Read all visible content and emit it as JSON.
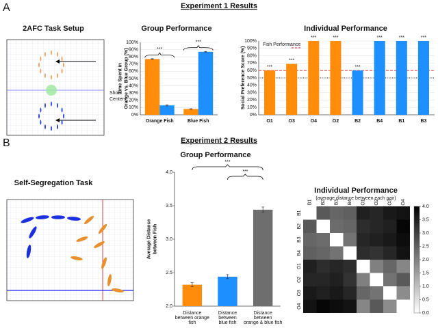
{
  "figure": {
    "panel_labels": [
      "A",
      "B"
    ],
    "section_titles": [
      "Experiment 1 Results",
      "Experiment 2 Results"
    ],
    "setup_a": {
      "title": "2AFC Task Setup",
      "label": [
        "Shoal",
        "Centers"
      ]
    },
    "setup_b": {
      "title": "Self-Segregation Task"
    }
  },
  "chart_data": [
    {
      "type": "bar",
      "title": "Group Performance",
      "ylabel": [
        "Time Spent in",
        "Orange vs. Blue Group (%)"
      ],
      "categories": [
        "Orange Fish",
        "Blue Fish"
      ],
      "series": [
        {
          "color": "#ff8c0a",
          "values": [
            77,
            8
          ],
          "errors": [
            0.5,
            0.4
          ]
        },
        {
          "color": "#1e8fff",
          "values": [
            13,
            87
          ],
          "errors": [
            0.6,
            0.5
          ]
        }
      ],
      "ylim": [
        0,
        100
      ],
      "yticks": [
        {
          "value": 0,
          "label": "0%"
        },
        {
          "value": 10,
          "label": "10%"
        },
        {
          "value": 20,
          "label": "20%"
        },
        {
          "value": 30,
          "label": "30%"
        },
        {
          "value": 40,
          "label": "40%"
        },
        {
          "value": 50,
          "label": "50%"
        },
        {
          "value": 60,
          "label": "60%"
        },
        {
          "value": 70,
          "label": "70%"
        },
        {
          "value": 80,
          "label": "80%"
        },
        {
          "value": 90,
          "label": "90%"
        },
        {
          "value": 100,
          "label": "100%"
        }
      ],
      "annotations": [
        "***",
        "***"
      ]
    },
    {
      "type": "bar",
      "title": "Individual Performance",
      "ylabel": [
        "Social Preference Score (%)"
      ],
      "categories": [
        "O1",
        "O3",
        "O4",
        "O2",
        "B2",
        "B4",
        "B1",
        "B3"
      ],
      "values": [
        60,
        69,
        100,
        100,
        60,
        100,
        100,
        100
      ],
      "colors": [
        "#ff8c0a",
        "#ff8c0a",
        "#ff8c0a",
        "#ff8c0a",
        "#1e8fff",
        "#1e8fff",
        "#1e8fff",
        "#1e8fff"
      ],
      "ylim": [
        0,
        100
      ],
      "yticks": [
        {
          "value": 0,
          "label": "0%"
        },
        {
          "value": 10,
          "label": "10%"
        },
        {
          "value": 20,
          "label": "20%"
        },
        {
          "value": 30,
          "label": "30%"
        },
        {
          "value": 40,
          "label": "40%"
        },
        {
          "value": 50,
          "label": "50%"
        },
        {
          "value": 60,
          "label": "60%"
        },
        {
          "value": 70,
          "label": "70%"
        },
        {
          "value": 80,
          "label": "80%"
        },
        {
          "value": 90,
          "label": "90%"
        },
        {
          "value": 100,
          "label": "100%"
        }
      ],
      "annotations": [
        "***",
        "***",
        "***",
        "***",
        "***",
        "***",
        "***",
        "***"
      ],
      "reference_lines": [
        {
          "value": 60,
          "color": "#d62728",
          "style": "dashed",
          "label": "Fish Performance"
        },
        {
          "value": 50,
          "color": "#222222",
          "style": "dotted"
        }
      ]
    },
    {
      "type": "bar",
      "title": "Group Performance",
      "ylabel": [
        "Average Distance",
        "between Fish"
      ],
      "categories": [
        [
          "Distance",
          "between orange",
          "fish"
        ],
        [
          "Distance",
          "between",
          "blue fish"
        ],
        [
          "Distance",
          "between",
          "orange & blue fish"
        ]
      ],
      "values": [
        2.32,
        2.44,
        3.44
      ],
      "errors": [
        0.03,
        0.03,
        0.04
      ],
      "colors": [
        "#ff8c0a",
        "#1e8fff",
        "#6e6e6e"
      ],
      "ylim": [
        2,
        4
      ],
      "yticks": [
        {
          "value": 2,
          "label": "2.0"
        },
        2.5,
        {
          "value": 3,
          "label": "3.0"
        },
        3.5,
        {
          "value": 4,
          "label": "4.0"
        }
      ],
      "annotations": [
        "***",
        "***"
      ]
    },
    {
      "type": "heatmap",
      "title": "Individual Performance",
      "subtitle": "(average distance between each pair)",
      "columns": [
        "B1",
        "B2",
        "B3",
        "B4",
        "O1",
        "O2",
        "O3",
        "O4"
      ],
      "rows": [
        "B1",
        "B2",
        "B3",
        "B4",
        "O1",
        "O2",
        "O3",
        "O4"
      ],
      "values": [
        [
          0,
          2.6,
          2.4,
          2.5,
          3.5,
          3.4,
          3.6,
          3.7
        ],
        [
          2.6,
          0,
          2.3,
          2.4,
          3.3,
          3.4,
          3.5,
          3.9
        ],
        [
          2.4,
          2.3,
          0,
          2.2,
          3.4,
          3.5,
          3.6,
          3.8
        ],
        [
          2.5,
          2.4,
          2.2,
          0,
          3.3,
          3.2,
          3.4,
          3.7
        ],
        [
          3.5,
          3.3,
          3.4,
          3.3,
          0,
          2.0,
          2.4,
          1.9
        ],
        [
          3.4,
          3.4,
          3.5,
          3.2,
          2.0,
          0,
          2.2,
          2.6
        ],
        [
          3.6,
          3.5,
          3.6,
          3.4,
          2.4,
          2.2,
          0,
          1.8
        ],
        [
          3.7,
          3.9,
          3.8,
          3.7,
          1.9,
          2.6,
          1.8,
          0
        ]
      ],
      "zlim": [
        0,
        4
      ],
      "zticks": [
        {
          "value": 0,
          "label": "0.0"
        },
        0.5,
        {
          "value": 1,
          "label": "1.0"
        },
        1.5,
        {
          "value": 2,
          "label": "2.0"
        },
        2.5,
        {
          "value": 3,
          "label": "3.0"
        },
        3.5,
        {
          "value": 4,
          "label": "4.0"
        }
      ]
    }
  ]
}
